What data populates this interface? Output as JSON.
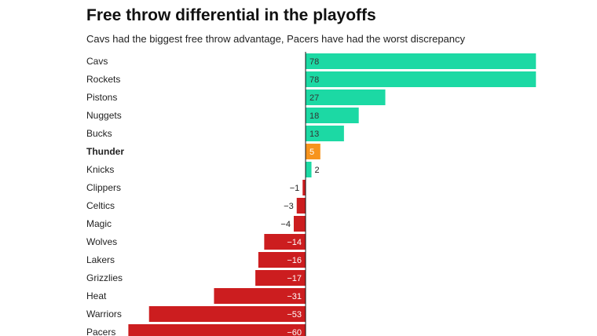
{
  "title": "Free throw differential in the playoffs",
  "subtitle": "Cavs had the biggest free throw advantage, Pacers have had the worst discrepancy",
  "colors": {
    "positive": "#1cd9a4",
    "negative": "#cc1d1f",
    "highlight": "#f7941d",
    "axis": "#111111"
  },
  "chart_data": {
    "type": "bar",
    "orientation": "horizontal",
    "title": "Free throw differential in the playoffs",
    "subtitle": "Cavs had the biggest free throw advantage, Pacers have had the worst discrepancy",
    "categories": [
      "Cavs",
      "Rockets",
      "Pistons",
      "Nuggets",
      "Bucks",
      "Thunder",
      "Knicks",
      "Clippers",
      "Celtics",
      "Magic",
      "Wolves",
      "Lakers",
      "Grizzlies",
      "Heat",
      "Warriors",
      "Pacers"
    ],
    "values": [
      78,
      78,
      27,
      18,
      13,
      5,
      2,
      -1,
      -3,
      -4,
      -14,
      -16,
      -17,
      -31,
      -53,
      -60
    ],
    "labels": [
      "78",
      "78",
      "27",
      "18",
      "13",
      "5",
      "2",
      "−1",
      "−3",
      "−4",
      "−14",
      "−16",
      "−17",
      "−31",
      "−53",
      "−60"
    ],
    "highlighted": [
      "Thunder"
    ],
    "xlim": [
      -60,
      78
    ],
    "grid": false,
    "legend": "none"
  }
}
